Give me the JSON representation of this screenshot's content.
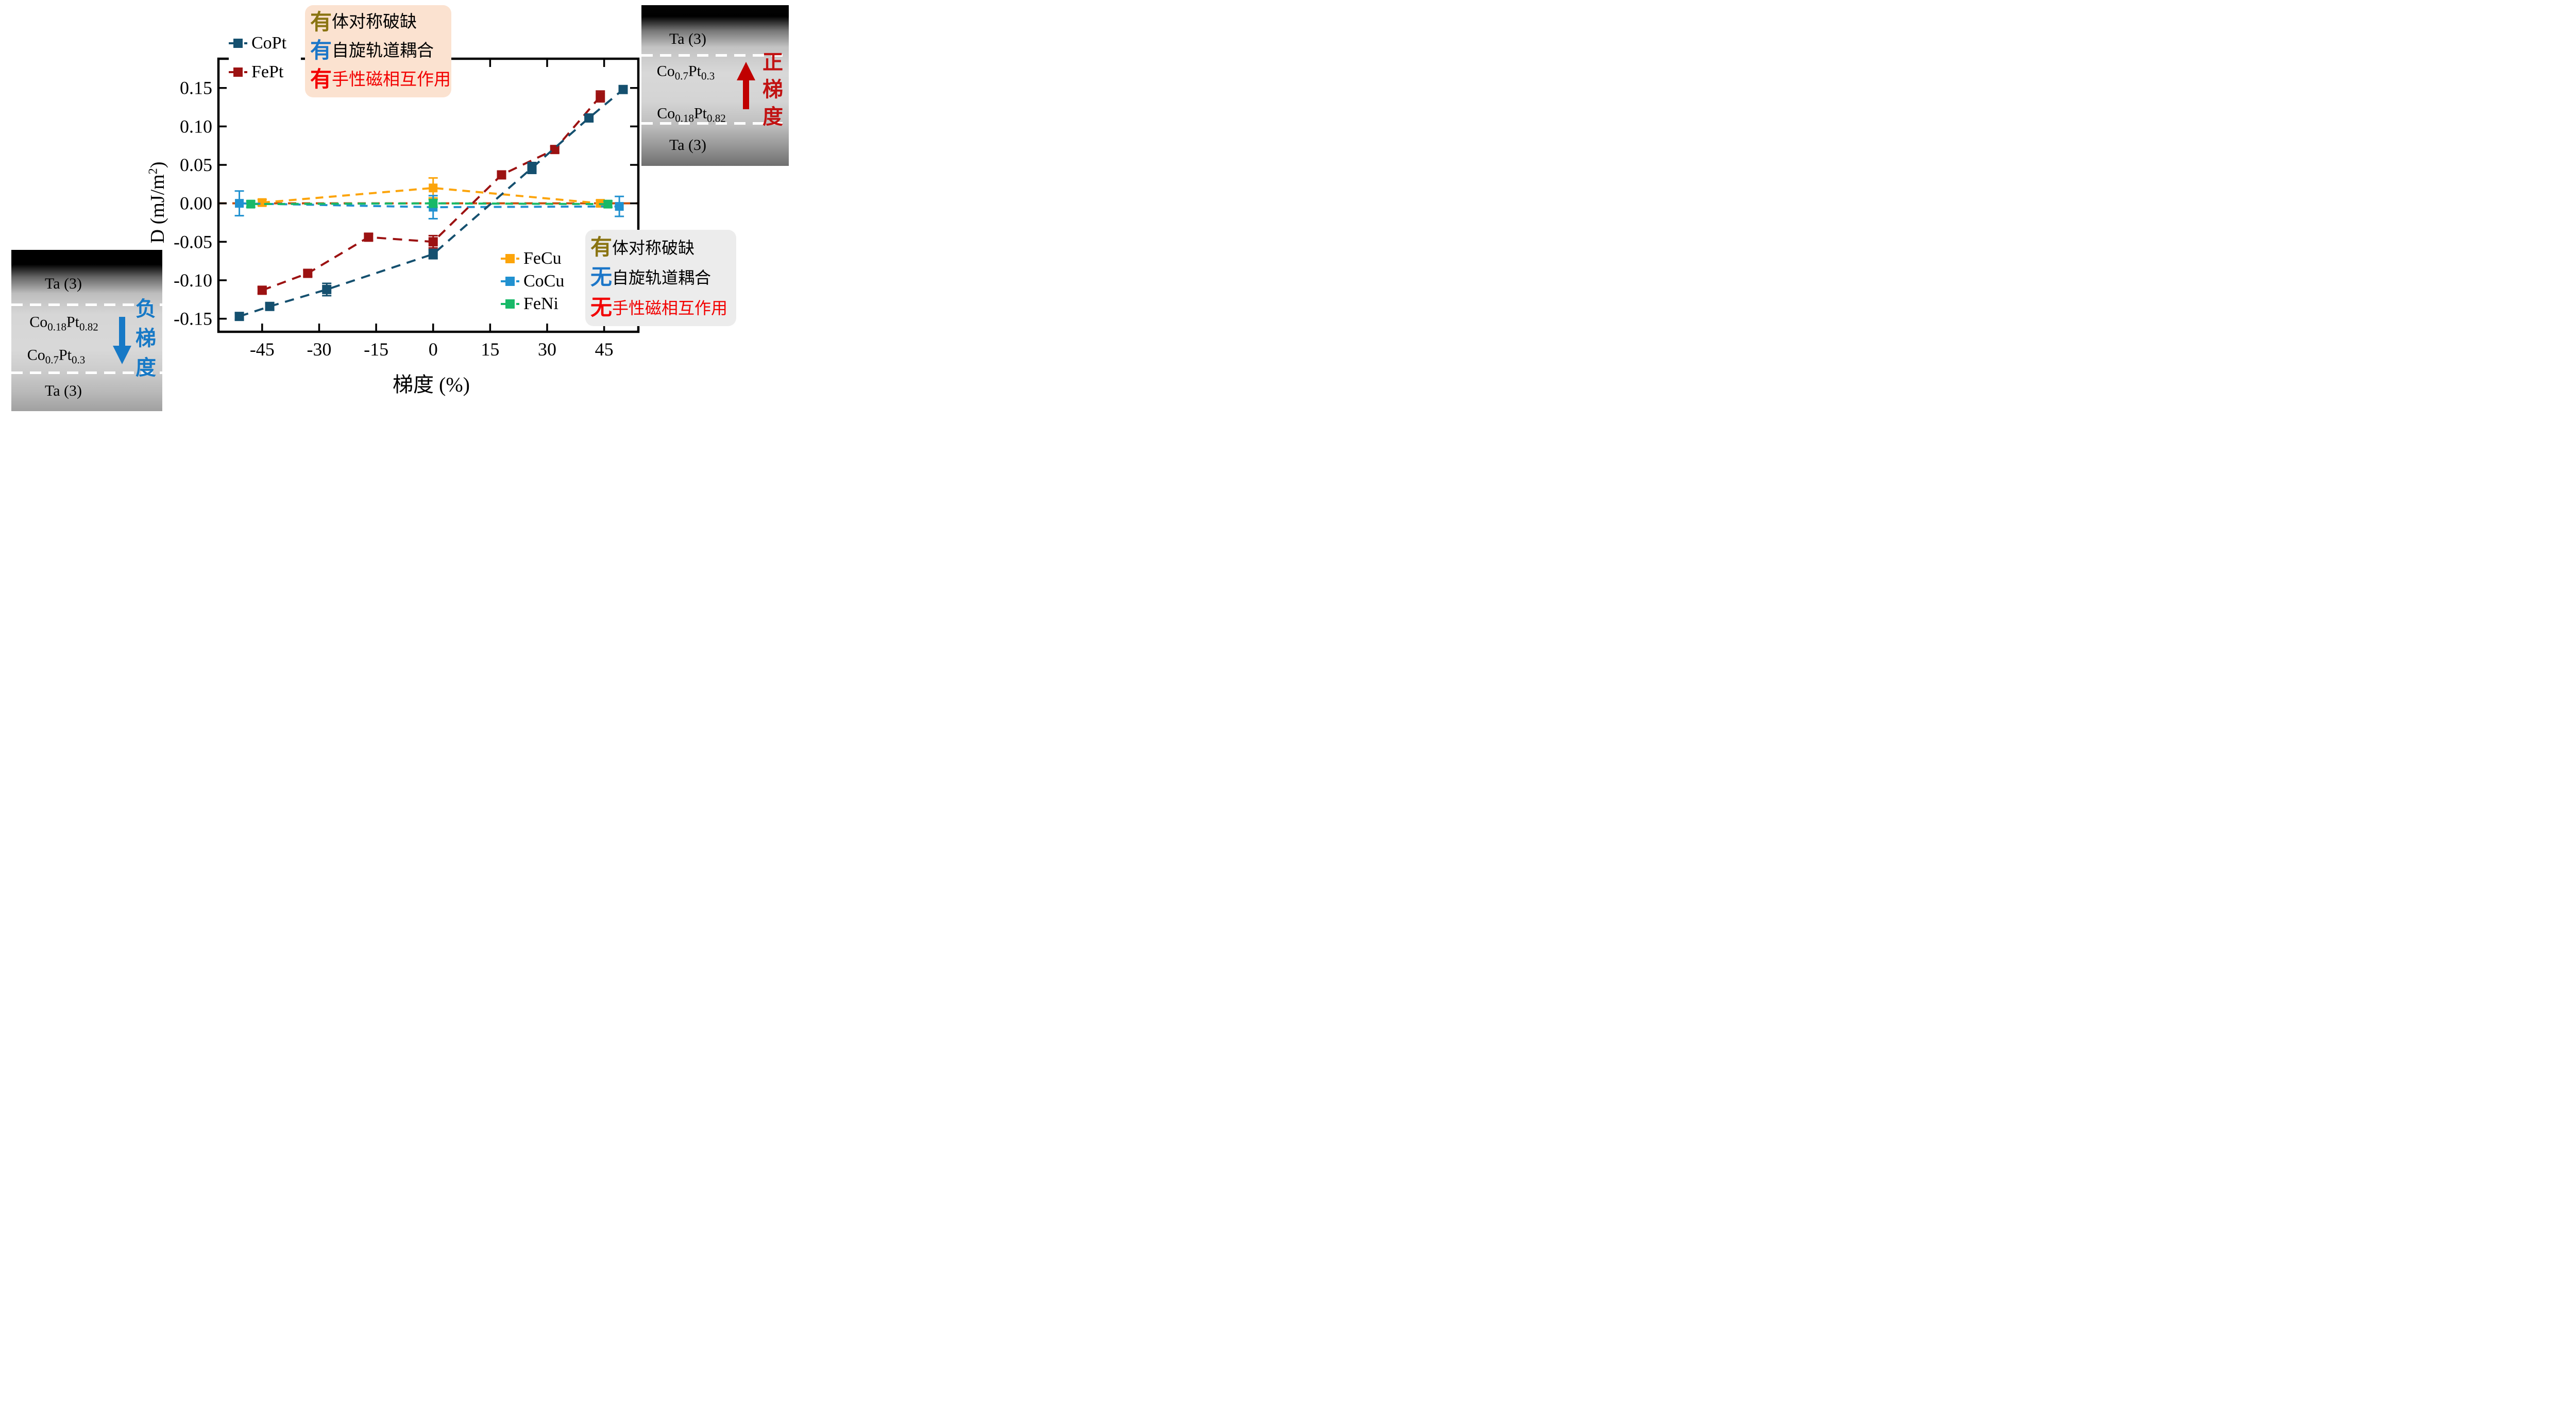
{
  "chart_data": {
    "type": "line",
    "title": "",
    "xlabel": "梯度 (%)",
    "ylabel": "D (mJ/m2)",
    "ylabel_parts": {
      "pre": "D (mJ/m",
      "sup": "2",
      "post": ")"
    },
    "xlim": [
      -56.5,
      54
    ],
    "ylim": [
      -0.167,
      0.188
    ],
    "grid": false,
    "x_ticks": {
      "values": [
        -45,
        -30,
        -15,
        0,
        15,
        30,
        45
      ],
      "labels": [
        "-45",
        "-30",
        "-15",
        "0",
        "15",
        "30",
        "45"
      ]
    },
    "y_ticks": {
      "values": [
        0.15,
        0.1,
        0.05,
        0.0,
        -0.05,
        -0.1,
        -0.15
      ],
      "labels": [
        "0.15",
        "0.10",
        "0.05",
        "0.00",
        "-0.05",
        "-0.10",
        "-0.15"
      ]
    },
    "zero_line": {
      "y": 0,
      "color": "#c8500c",
      "style": "dashed"
    },
    "legend_position_top": "upper left: CoPt, FePt",
    "legend_position_bottom": "lower right: FeCu, CoCu, FeNi",
    "series": [
      {
        "name": "FeCu",
        "color": "#fca40a",
        "marker": "square",
        "marker_size": 17,
        "dash": [
          15,
          11
        ],
        "points": [
          {
            "x": -45,
            "y": 0.001,
            "err": 0.004
          },
          {
            "x": 0,
            "y": 0.02,
            "err": 0.013
          },
          {
            "x": 44,
            "y": 0.0,
            "err": 0.004
          }
        ]
      },
      {
        "name": "CoCu",
        "color": "#2191d0",
        "marker": "square",
        "marker_size": 17,
        "dash": [
          15,
          11
        ],
        "points": [
          {
            "x": -51,
            "y": 0.0,
            "err": 0.016
          },
          {
            "x": 0,
            "y": -0.005,
            "err": 0.015
          },
          {
            "x": 49,
            "y": -0.004,
            "err": 0.013
          }
        ]
      },
      {
        "name": "FeNi",
        "color": "#18b968",
        "marker": "square",
        "marker_size": 17,
        "dash": [
          15,
          11
        ],
        "points": [
          {
            "x": -48,
            "y": -0.001,
            "err": 0.004
          },
          {
            "x": 0,
            "y": 0.0,
            "err": 0.005
          },
          {
            "x": 46,
            "y": -0.001,
            "err": 0.004
          }
        ]
      },
      {
        "name": "FePt",
        "color": "#9c1212",
        "marker": "square",
        "marker_size": 18,
        "dash": [
          18,
          13
        ],
        "points": [
          {
            "x": -45,
            "y": -0.113,
            "err": 0.004
          },
          {
            "x": -33,
            "y": -0.091,
            "err": 0.004
          },
          {
            "x": -17,
            "y": -0.044,
            "err": 0.004
          },
          {
            "x": 0,
            "y": -0.05,
            "err": 0.008
          },
          {
            "x": 18,
            "y": 0.037,
            "err": 0.004
          },
          {
            "x": 32,
            "y": 0.07,
            "err": 0.004
          },
          {
            "x": 44,
            "y": 0.139,
            "err": 0.007
          }
        ]
      },
      {
        "name": "CoPt",
        "color": "#15506f",
        "marker": "square",
        "marker_size": 18,
        "dash": [
          18,
          13
        ],
        "points": [
          {
            "x": -51,
            "y": -0.147,
            "err": 0.004
          },
          {
            "x": -43,
            "y": -0.134,
            "err": 0.004
          },
          {
            "x": -28,
            "y": -0.112,
            "err": 0.008
          },
          {
            "x": 0,
            "y": -0.066,
            "err": 0.006
          },
          {
            "x": 26,
            "y": 0.046,
            "err": 0.007
          },
          {
            "x": 41,
            "y": 0.111,
            "err": 0.004
          },
          {
            "x": 50,
            "y": 0.148,
            "err": 0.004
          }
        ]
      }
    ]
  },
  "annotations": {
    "top_box": {
      "bg": "#fbe2d0",
      "lines": [
        {
          "lead": "有",
          "lead_color": "#8a7412",
          "body": "体对称破缺",
          "body_color": "#000000"
        },
        {
          "lead": "有",
          "lead_color": "#1b76c8",
          "body": "自旋轨道耦合",
          "body_color": "#000000"
        },
        {
          "lead": "有",
          "lead_color": "#f20000",
          "body": "手性磁相互作用",
          "body_color": "#f20000"
        }
      ]
    },
    "bottom_box": {
      "bg": "#ececec",
      "lines": [
        {
          "lead": "有",
          "lead_color": "#8a7412",
          "body": "体对称破缺",
          "body_color": "#000000"
        },
        {
          "lead": "无",
          "lead_color": "#1b76c8",
          "body": "自旋轨道耦合",
          "body_color": "#000000"
        },
        {
          "lead": "无",
          "lead_color": "#f20000",
          "body": "手性磁相互作用",
          "body_color": "#f20000"
        }
      ]
    }
  },
  "insets": {
    "left": {
      "label_top": "Ta (3)",
      "formula1": {
        "p1": "Co",
        "s1": "0.18",
        "p2": "Pt",
        "s2": "0.82"
      },
      "formula2": {
        "p1": "Co",
        "s1": "0.7",
        "p2": "Pt",
        "s2": "0.3"
      },
      "label_bottom": "Ta (3)",
      "side_text": {
        "chars": [
          "负",
          "梯",
          "度"
        ],
        "color": "#1779c6"
      },
      "arrow": {
        "direction": "down",
        "color": "#1779c6"
      }
    },
    "right": {
      "label_top": "Ta (3)",
      "formula1": {
        "p1": "Co",
        "s1": "0.7",
        "p2": "Pt",
        "s2": "0.3"
      },
      "formula2": {
        "p1": "Co",
        "s1": "0.18",
        "p2": "Pt",
        "s2": "0.82"
      },
      "label_bottom": "Ta (3)",
      "side_text": {
        "chars": [
          "正",
          "梯",
          "度"
        ],
        "color": "#c11212"
      },
      "arrow": {
        "direction": "up",
        "color": "#c00000"
      }
    }
  }
}
